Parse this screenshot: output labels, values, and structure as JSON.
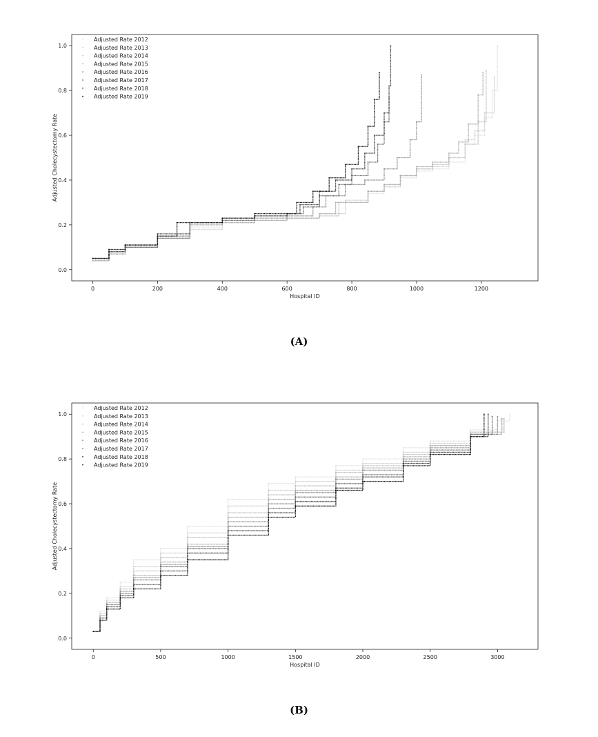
{
  "chart_data": [
    {
      "type": "scatter",
      "panel_label": "(A)",
      "xlabel": "Hospital ID",
      "ylabel": "Adjusted Cholecystectomy Rate",
      "xlim": [
        -65,
        1375
      ],
      "ylim": [
        -0.05,
        1.05
      ],
      "xticks": [
        0,
        200,
        400,
        600,
        800,
        1000,
        1200
      ],
      "yticks": [
        0.0,
        0.2,
        0.4,
        0.6,
        0.8,
        1.0
      ],
      "grid": false,
      "legend_position": "top-left",
      "series": [
        {
          "name": "Adjusted Rate 2012",
          "color": "#e0e0e0",
          "x": [
            0,
            50,
            100,
            200,
            300,
            400,
            500,
            600,
            700,
            780,
            850,
            900,
            950,
            1000,
            1050,
            1100,
            1150,
            1180,
            1210,
            1235,
            1250
          ],
          "y": [
            0.04,
            0.08,
            0.1,
            0.14,
            0.19,
            0.21,
            0.22,
            0.23,
            0.25,
            0.3,
            0.34,
            0.37,
            0.41,
            0.44,
            0.45,
            0.48,
            0.56,
            0.6,
            0.68,
            0.8,
            1.0
          ]
        },
        {
          "name": "Adjusted Rate 2013",
          "color": "#cfcfcf",
          "x": [
            0,
            50,
            100,
            200,
            300,
            400,
            500,
            600,
            700,
            780,
            850,
            900,
            950,
            1000,
            1050,
            1100,
            1150,
            1180,
            1210,
            1240
          ],
          "y": [
            0.04,
            0.07,
            0.1,
            0.14,
            0.18,
            0.21,
            0.22,
            0.23,
            0.25,
            0.31,
            0.35,
            0.37,
            0.42,
            0.45,
            0.46,
            0.5,
            0.58,
            0.62,
            0.7,
            0.86
          ]
        },
        {
          "name": "Adjusted Rate 2014",
          "color": "#bdbdbd",
          "x": [
            0,
            50,
            100,
            200,
            300,
            400,
            500,
            600,
            700,
            760,
            850,
            900,
            950,
            1000,
            1050,
            1100,
            1150,
            1190,
            1215
          ],
          "y": [
            0.04,
            0.08,
            0.1,
            0.14,
            0.2,
            0.21,
            0.22,
            0.23,
            0.24,
            0.3,
            0.35,
            0.38,
            0.42,
            0.45,
            0.47,
            0.5,
            0.56,
            0.66,
            0.89
          ]
        },
        {
          "name": "Adjusted Rate 2015",
          "color": "#a8a8a8",
          "x": [
            0,
            50,
            100,
            200,
            300,
            400,
            500,
            600,
            700,
            750,
            850,
            900,
            950,
            1000,
            1050,
            1100,
            1130,
            1160,
            1190,
            1205
          ],
          "y": [
            0.04,
            0.07,
            0.1,
            0.14,
            0.2,
            0.21,
            0.22,
            0.23,
            0.25,
            0.3,
            0.35,
            0.38,
            0.42,
            0.46,
            0.48,
            0.52,
            0.57,
            0.65,
            0.78,
            0.88
          ]
        },
        {
          "name": "Adjusted Rate 2016",
          "color": "#8a8a8a",
          "x": [
            0,
            50,
            100,
            200,
            300,
            400,
            500,
            600,
            680,
            720,
            780,
            840,
            900,
            940,
            980,
            1000,
            1015
          ],
          "y": [
            0.05,
            0.08,
            0.1,
            0.14,
            0.21,
            0.22,
            0.23,
            0.24,
            0.28,
            0.33,
            0.38,
            0.4,
            0.45,
            0.5,
            0.58,
            0.66,
            0.87
          ]
        },
        {
          "name": "Adjusted Rate 2017",
          "color": "#6a6a6a",
          "x": [
            0,
            50,
            100,
            200,
            300,
            400,
            500,
            600,
            650,
            700,
            760,
            800,
            850,
            880,
            900,
            915
          ],
          "y": [
            0.05,
            0.08,
            0.1,
            0.15,
            0.21,
            0.22,
            0.24,
            0.25,
            0.28,
            0.33,
            0.38,
            0.42,
            0.48,
            0.56,
            0.66,
            0.77
          ]
        },
        {
          "name": "Adjusted Rate 2018",
          "color": "#3e3e3e",
          "x": [
            0,
            50,
            100,
            200,
            300,
            400,
            500,
            600,
            640,
            700,
            750,
            800,
            840,
            870,
            900,
            915,
            920
          ],
          "y": [
            0.05,
            0.08,
            0.11,
            0.16,
            0.21,
            0.23,
            0.24,
            0.25,
            0.29,
            0.35,
            0.4,
            0.45,
            0.52,
            0.6,
            0.7,
            0.82,
            1.0
          ]
        },
        {
          "name": "Adjusted Rate 2019",
          "color": "#111111",
          "x": [
            0,
            50,
            100,
            200,
            260,
            400,
            500,
            600,
            630,
            680,
            730,
            780,
            820,
            850,
            870,
            885
          ],
          "y": [
            0.05,
            0.09,
            0.11,
            0.15,
            0.21,
            0.23,
            0.25,
            0.25,
            0.3,
            0.35,
            0.41,
            0.47,
            0.55,
            0.64,
            0.76,
            0.88
          ]
        }
      ]
    },
    {
      "type": "scatter",
      "panel_label": "(B)",
      "xlabel": "Hospital ID",
      "ylabel": "Adjusted Cholecystectomy Rate",
      "xlim": [
        -160,
        3300
      ],
      "ylim": [
        -0.05,
        1.05
      ],
      "xticks": [
        0,
        500,
        1000,
        1500,
        2000,
        2500,
        3000
      ],
      "yticks": [
        0.0,
        0.2,
        0.4,
        0.6,
        0.8,
        1.0
      ],
      "grid": false,
      "legend_position": "top-left",
      "series": [
        {
          "name": "Adjusted Rate 2012",
          "color": "#e0e0e0",
          "x": [
            0,
            50,
            100,
            200,
            300,
            500,
            700,
            1000,
            1300,
            1500,
            1800,
            2000,
            2300,
            2500,
            2800,
            3000,
            3090
          ],
          "y": [
            0.03,
            0.12,
            0.18,
            0.25,
            0.35,
            0.4,
            0.5,
            0.62,
            0.69,
            0.72,
            0.77,
            0.8,
            0.85,
            0.88,
            0.93,
            0.97,
            1.0
          ]
        },
        {
          "name": "Adjusted Rate 2013",
          "color": "#cfcfcf",
          "x": [
            0,
            50,
            100,
            200,
            300,
            500,
            700,
            1000,
            1300,
            1500,
            1800,
            2000,
            2300,
            2500,
            2800,
            3050
          ],
          "y": [
            0.03,
            0.11,
            0.17,
            0.23,
            0.32,
            0.38,
            0.47,
            0.59,
            0.66,
            0.7,
            0.75,
            0.78,
            0.83,
            0.87,
            0.92,
            0.98
          ]
        },
        {
          "name": "Adjusted Rate 2014",
          "color": "#bdbdbd",
          "x": [
            0,
            50,
            100,
            200,
            300,
            500,
            700,
            1000,
            1300,
            1500,
            1800,
            2000,
            2300,
            2500,
            2800,
            3040
          ],
          "y": [
            0.03,
            0.1,
            0.16,
            0.22,
            0.3,
            0.36,
            0.45,
            0.56,
            0.64,
            0.68,
            0.74,
            0.77,
            0.82,
            0.86,
            0.92,
            0.98
          ]
        },
        {
          "name": "Adjusted Rate 2015",
          "color": "#a8a8a8",
          "x": [
            0,
            50,
            100,
            200,
            300,
            500,
            700,
            1000,
            1300,
            1500,
            1800,
            2000,
            2300,
            2500,
            2800,
            3030
          ],
          "y": [
            0.03,
            0.1,
            0.16,
            0.21,
            0.28,
            0.34,
            0.42,
            0.54,
            0.62,
            0.66,
            0.72,
            0.76,
            0.81,
            0.86,
            0.91,
            0.98
          ]
        },
        {
          "name": "Adjusted Rate 2016",
          "color": "#8a8a8a",
          "x": [
            0,
            50,
            100,
            200,
            300,
            500,
            700,
            1000,
            1300,
            1500,
            1800,
            2000,
            2300,
            2500,
            2800,
            3000
          ],
          "y": [
            0.03,
            0.09,
            0.15,
            0.21,
            0.27,
            0.33,
            0.41,
            0.52,
            0.6,
            0.65,
            0.71,
            0.75,
            0.8,
            0.85,
            0.91,
            0.99
          ]
        },
        {
          "name": "Adjusted Rate 2017",
          "color": "#6a6a6a",
          "x": [
            0,
            50,
            100,
            200,
            300,
            500,
            700,
            1000,
            1300,
            1500,
            1800,
            2000,
            2300,
            2500,
            2800,
            2960
          ],
          "y": [
            0.03,
            0.09,
            0.15,
            0.2,
            0.26,
            0.32,
            0.4,
            0.5,
            0.58,
            0.63,
            0.69,
            0.73,
            0.79,
            0.84,
            0.91,
            0.99
          ]
        },
        {
          "name": "Adjusted Rate 2018",
          "color": "#3e3e3e",
          "x": [
            0,
            50,
            100,
            200,
            300,
            500,
            700,
            1000,
            1300,
            1500,
            1800,
            2000,
            2300,
            2500,
            2800,
            2930
          ],
          "y": [
            0.03,
            0.08,
            0.14,
            0.19,
            0.24,
            0.3,
            0.38,
            0.48,
            0.56,
            0.61,
            0.67,
            0.72,
            0.78,
            0.83,
            0.9,
            1.0
          ]
        },
        {
          "name": "Adjusted Rate 2019",
          "color": "#111111",
          "x": [
            0,
            50,
            100,
            200,
            300,
            500,
            700,
            1000,
            1300,
            1500,
            1800,
            2000,
            2300,
            2500,
            2800,
            2900
          ],
          "y": [
            0.03,
            0.08,
            0.13,
            0.18,
            0.22,
            0.28,
            0.35,
            0.46,
            0.54,
            0.59,
            0.66,
            0.7,
            0.77,
            0.82,
            0.9,
            1.0
          ]
        }
      ]
    }
  ]
}
